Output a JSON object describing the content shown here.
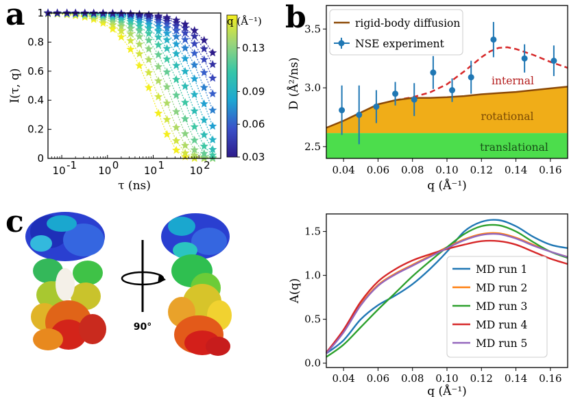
{
  "panels": {
    "a": "a",
    "b": "b",
    "c": "c"
  },
  "rotation_label": "90°",
  "colors": {
    "rigid_body": "#8c4a07",
    "nse": "#1f77b4",
    "internal_curve": "#d62728",
    "rotational_fill": "#f0ad18",
    "translational_fill": "#4cdd4c",
    "md": [
      "#1f77b4",
      "#ff7f0e",
      "#2ca02c",
      "#d62728",
      "#9467bd"
    ]
  },
  "chart_data": [
    {
      "id": "a",
      "type": "scatter",
      "title": "",
      "xlabel": "τ (ns)",
      "ylabel": "I(τ, q)",
      "xscale": "log",
      "xlim": [
        0.05,
        300
      ],
      "ylim": [
        0,
        1
      ],
      "xticks": [
        {
          "value": 0.1,
          "base": "10",
          "exp": "-1"
        },
        {
          "value": 1,
          "base": "10",
          "exp": "0"
        },
        {
          "value": 10,
          "base": "10",
          "exp": "1"
        },
        {
          "value": 100,
          "base": "10",
          "exp": "2"
        }
      ],
      "yticks": [
        "0",
        "0.2",
        "0.4",
        "0.6",
        "0.8",
        "1"
      ],
      "colorbar": {
        "label": "q (Å⁻¹)",
        "range": [
          0.03,
          0.16
        ],
        "ticks": [
          "0.03",
          "0.06",
          "0.09",
          "0.13"
        ],
        "tick_values": [
          0.03,
          0.06,
          0.09,
          0.13
        ]
      },
      "q_values": [
        0.03,
        0.04,
        0.05,
        0.06,
        0.07,
        0.08,
        0.09,
        0.1,
        0.11,
        0.12,
        0.13,
        0.14,
        0.15,
        0.16
      ],
      "tau_points": [
        0.05,
        0.08,
        0.13,
        0.2,
        0.32,
        0.5,
        0.8,
        1.3,
        2,
        3.2,
        5,
        8,
        13,
        20,
        32,
        50,
        80,
        130,
        200
      ],
      "decay_rate_per_ns_at_q": {
        "0.03": 0.0016,
        "0.16": 0.09
      }
    },
    {
      "id": "b",
      "type": "line",
      "title": "",
      "xlabel": "q (Å⁻¹)",
      "ylabel": "D (Å²/ns)",
      "xlim": [
        0.03,
        0.17
      ],
      "ylim": [
        2.4,
        3.7
      ],
      "xticks": [
        "0.04",
        "0.06",
        "0.08",
        "0.10",
        "0.12",
        "0.14",
        "0.16"
      ],
      "yticks": [
        "2.5",
        "3.0",
        "3.5"
      ],
      "legend": [
        "rigid-body diffusion",
        "NSE experiment"
      ],
      "annotations": {
        "internal": "internal",
        "rotational": "rotational",
        "translational": "translational"
      },
      "translational_level": 2.615,
      "rigid_body": {
        "x": [
          0.03,
          0.04,
          0.05,
          0.06,
          0.07,
          0.08,
          0.09,
          0.1,
          0.11,
          0.12,
          0.13,
          0.14,
          0.15,
          0.16,
          0.17
        ],
        "y": [
          2.66,
          2.72,
          2.79,
          2.86,
          2.895,
          2.915,
          2.915,
          2.92,
          2.93,
          2.945,
          2.955,
          2.965,
          2.98,
          2.995,
          3.01
        ]
      },
      "internal_fit": {
        "x": [
          0.07,
          0.08,
          0.09,
          0.1,
          0.11,
          0.115,
          0.12,
          0.125,
          0.13,
          0.135,
          0.14,
          0.15,
          0.16,
          0.17
        ],
        "y": [
          2.895,
          2.92,
          2.96,
          3.03,
          3.14,
          3.2,
          3.26,
          3.31,
          3.34,
          3.345,
          3.33,
          3.28,
          3.22,
          3.17
        ]
      },
      "nse": {
        "x": [
          0.039,
          0.049,
          0.059,
          0.07,
          0.081,
          0.092,
          0.103,
          0.114,
          0.127,
          0.145,
          0.162
        ],
        "y": [
          2.81,
          2.77,
          2.84,
          2.95,
          2.9,
          3.13,
          2.98,
          3.09,
          3.41,
          3.25,
          3.23
        ],
        "err": [
          0.21,
          0.25,
          0.14,
          0.1,
          0.14,
          0.14,
          0.1,
          0.14,
          0.15,
          0.12,
          0.13
        ]
      }
    },
    {
      "id": "d",
      "type": "line",
      "title": "",
      "xlabel": "q (Å⁻¹)",
      "ylabel": "A(q)",
      "xlim": [
        0.03,
        0.17
      ],
      "ylim": [
        -0.05,
        1.7
      ],
      "xticks": [
        "0.04",
        "0.06",
        "0.08",
        "0.10",
        "0.12",
        "0.14",
        "0.16"
      ],
      "yticks": [
        "0.0",
        "0.5",
        "1.0",
        "1.5"
      ],
      "legend_location": "lower right",
      "series": [
        {
          "name": "MD run 1",
          "x": [
            0.03,
            0.04,
            0.05,
            0.06,
            0.07,
            0.08,
            0.09,
            0.1,
            0.11,
            0.12,
            0.13,
            0.14,
            0.15,
            0.16,
            0.17
          ],
          "values": [
            0.11,
            0.26,
            0.5,
            0.66,
            0.77,
            0.9,
            1.07,
            1.27,
            1.5,
            1.61,
            1.63,
            1.56,
            1.44,
            1.35,
            1.31
          ]
        },
        {
          "name": "MD run 2",
          "x": [
            0.03,
            0.04,
            0.05,
            0.06,
            0.07,
            0.08,
            0.09,
            0.1,
            0.11,
            0.12,
            0.13,
            0.14,
            0.15,
            0.16,
            0.17
          ],
          "values": [
            0.11,
            0.36,
            0.67,
            0.89,
            1.02,
            1.12,
            1.22,
            1.32,
            1.41,
            1.47,
            1.48,
            1.43,
            1.35,
            1.27,
            1.21
          ]
        },
        {
          "name": "MD run 3",
          "x": [
            0.03,
            0.04,
            0.05,
            0.06,
            0.07,
            0.08,
            0.09,
            0.1,
            0.11,
            0.12,
            0.13,
            0.14,
            0.15,
            0.16,
            0.17
          ],
          "values": [
            0.07,
            0.21,
            0.41,
            0.61,
            0.8,
            0.99,
            1.16,
            1.32,
            1.47,
            1.56,
            1.57,
            1.5,
            1.38,
            1.27,
            1.2
          ]
        },
        {
          "name": "MD run 4",
          "x": [
            0.03,
            0.04,
            0.05,
            0.06,
            0.07,
            0.08,
            0.09,
            0.1,
            0.11,
            0.12,
            0.13,
            0.14,
            0.15,
            0.16,
            0.17
          ],
          "values": [
            0.12,
            0.38,
            0.7,
            0.93,
            1.07,
            1.17,
            1.24,
            1.3,
            1.35,
            1.39,
            1.39,
            1.35,
            1.27,
            1.19,
            1.13
          ]
        },
        {
          "name": "MD run 5",
          "x": [
            0.03,
            0.04,
            0.05,
            0.06,
            0.07,
            0.08,
            0.09,
            0.1,
            0.11,
            0.12,
            0.13,
            0.14,
            0.15,
            0.16,
            0.17
          ],
          "values": [
            0.11,
            0.35,
            0.66,
            0.88,
            1.01,
            1.11,
            1.21,
            1.31,
            1.4,
            1.46,
            1.47,
            1.42,
            1.34,
            1.27,
            1.21
          ]
        }
      ]
    }
  ]
}
